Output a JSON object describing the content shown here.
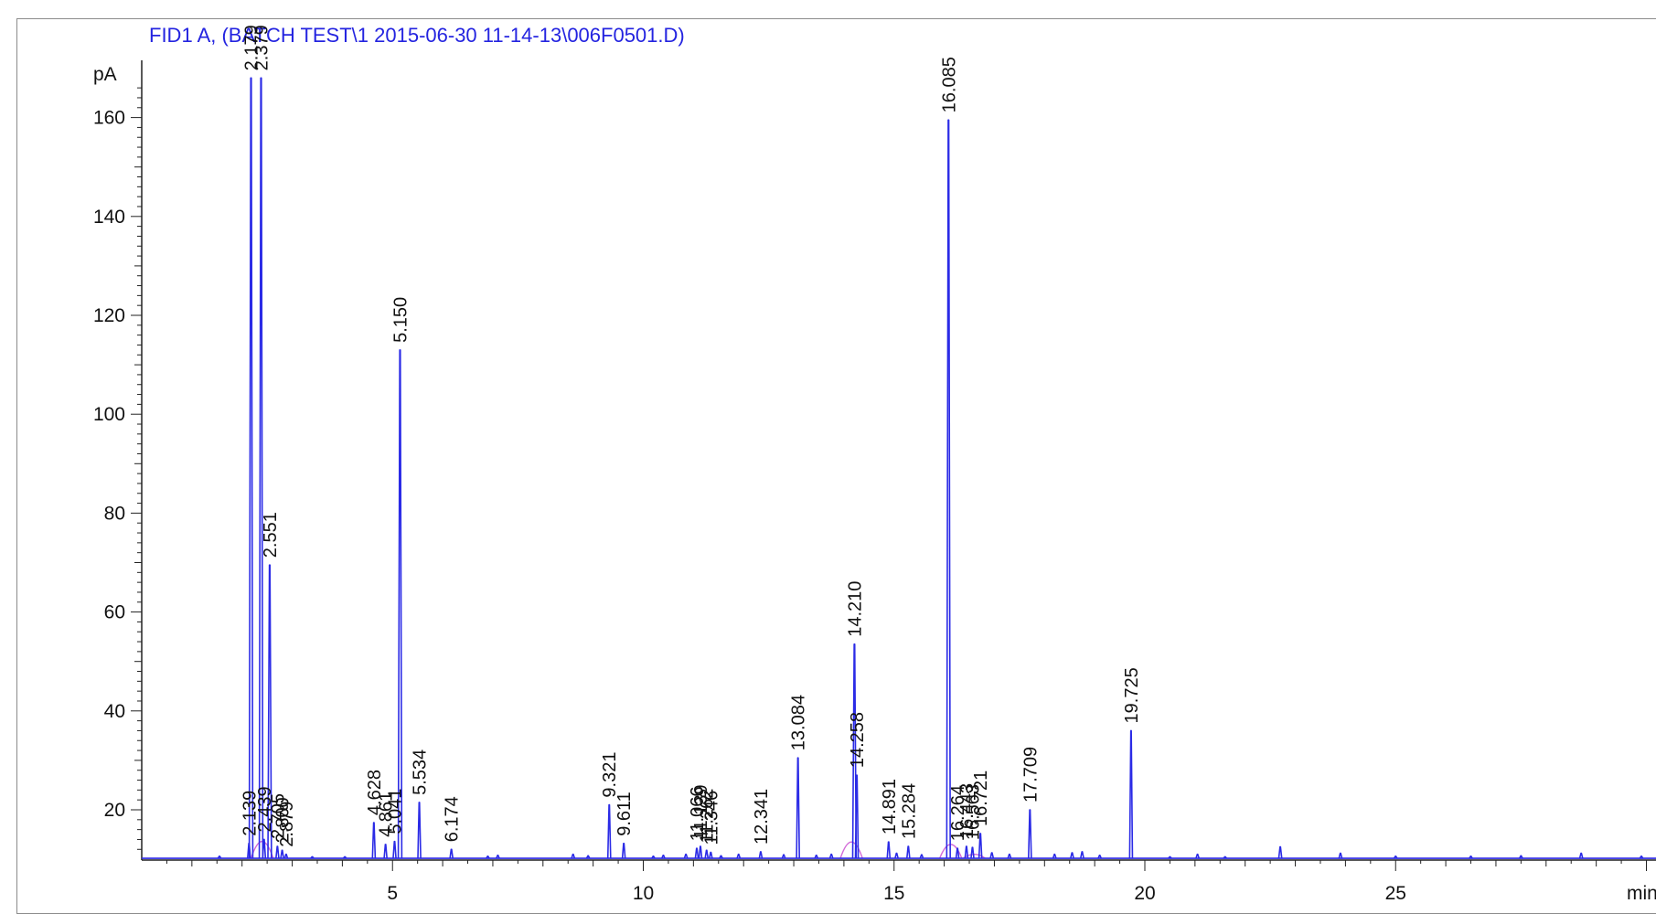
{
  "chart_data": {
    "type": "line",
    "title": "FID1 A,  (BATCH TEST\\1 2015-06-30 11-14-13\\006F0501.D)",
    "ylabel": "pA",
    "xlabel": "min",
    "xlim": [
      0,
      30.5
    ],
    "ylim": [
      9.5,
      168
    ],
    "x_ticks": [
      5,
      10,
      15,
      20,
      25
    ],
    "y_ticks": [
      20,
      40,
      60,
      80,
      100,
      120,
      140,
      160
    ],
    "baseline": 10.2,
    "grid": false,
    "series": [
      {
        "color": "#2b2be6"
      },
      {
        "color": "#d36ad8"
      }
    ],
    "peaks": [
      {
        "label": "2.139",
        "x": 2.139,
        "y": 13.2
      },
      {
        "label": "2.179",
        "x": 2.179,
        "y": 168
      },
      {
        "label": "2.379",
        "x": 2.379,
        "y": 168
      },
      {
        "label": "2.439",
        "x": 2.439,
        "y": 14.0
      },
      {
        "label": "2.551",
        "x": 2.551,
        "y": 69.5
      },
      {
        "label": "2.705",
        "x": 2.705,
        "y": 12.6
      },
      {
        "label": "2.800",
        "x": 2.8,
        "y": 11.8
      },
      {
        "label": "2.879",
        "x": 2.879,
        "y": 11.0
      },
      {
        "label": "4.628",
        "x": 4.628,
        "y": 17.4
      },
      {
        "label": "4.861",
        "x": 4.861,
        "y": 13.0
      },
      {
        "label": "5.041",
        "x": 5.041,
        "y": 13.6
      },
      {
        "label": "5.150",
        "x": 5.15,
        "y": 113.0
      },
      {
        "label": "5.534",
        "x": 5.534,
        "y": 21.5
      },
      {
        "label": "6.174",
        "x": 6.174,
        "y": 12.0
      },
      {
        "label": "9.321",
        "x": 9.321,
        "y": 21.0
      },
      {
        "label": "9.611",
        "x": 9.611,
        "y": 13.2
      },
      {
        "label": "11.066",
        "x": 11.066,
        "y": 12.2
      },
      {
        "label": "11.139",
        "x": 11.139,
        "y": 12.6
      },
      {
        "label": "11.262",
        "x": 11.262,
        "y": 11.8
      },
      {
        "label": "11.346",
        "x": 11.346,
        "y": 11.4
      },
      {
        "label": "12.341",
        "x": 12.341,
        "y": 11.5
      },
      {
        "label": "13.084",
        "x": 13.084,
        "y": 30.5
      },
      {
        "label": "14.210",
        "x": 14.21,
        "y": 53.5
      },
      {
        "label": "14.258",
        "x": 14.258,
        "y": 27.0
      },
      {
        "label": "14.891",
        "x": 14.891,
        "y": 13.5
      },
      {
        "label": "15.284",
        "x": 15.284,
        "y": 12.6
      },
      {
        "label": "16.085",
        "x": 16.085,
        "y": 159.5
      },
      {
        "label": "16.264",
        "x": 16.264,
        "y": 12.2
      },
      {
        "label": "16.443",
        "x": 16.443,
        "y": 12.6
      },
      {
        "label": "16.563",
        "x": 16.563,
        "y": 12.4
      },
      {
        "label": "16.721",
        "x": 16.721,
        "y": 15.2
      },
      {
        "label": "17.709",
        "x": 17.709,
        "y": 20.0
      },
      {
        "label": "19.725",
        "x": 19.725,
        "y": 36.0
      }
    ],
    "minor_peaks": [
      {
        "x": 1.55,
        "y": 10.6
      },
      {
        "x": 3.4,
        "y": 10.5
      },
      {
        "x": 4.05,
        "y": 10.5
      },
      {
        "x": 6.9,
        "y": 10.6
      },
      {
        "x": 7.1,
        "y": 10.8
      },
      {
        "x": 8.6,
        "y": 11.0
      },
      {
        "x": 8.9,
        "y": 10.7
      },
      {
        "x": 10.2,
        "y": 10.6
      },
      {
        "x": 10.4,
        "y": 10.8
      },
      {
        "x": 10.85,
        "y": 11.0
      },
      {
        "x": 11.55,
        "y": 10.7
      },
      {
        "x": 11.9,
        "y": 11.0
      },
      {
        "x": 12.8,
        "y": 10.9
      },
      {
        "x": 13.45,
        "y": 10.8
      },
      {
        "x": 13.75,
        "y": 11.0
      },
      {
        "x": 15.05,
        "y": 11.2
      },
      {
        "x": 15.55,
        "y": 10.9
      },
      {
        "x": 16.95,
        "y": 11.3
      },
      {
        "x": 17.3,
        "y": 11.0
      },
      {
        "x": 18.2,
        "y": 11.0
      },
      {
        "x": 18.55,
        "y": 11.3
      },
      {
        "x": 18.75,
        "y": 11.5
      },
      {
        "x": 19.1,
        "y": 10.8
      },
      {
        "x": 20.5,
        "y": 10.5
      },
      {
        "x": 21.05,
        "y": 11.0
      },
      {
        "x": 21.6,
        "y": 10.5
      },
      {
        "x": 22.7,
        "y": 12.5
      },
      {
        "x": 23.9,
        "y": 11.2
      },
      {
        "x": 25.0,
        "y": 10.6
      },
      {
        "x": 26.5,
        "y": 10.6
      },
      {
        "x": 27.5,
        "y": 10.7
      },
      {
        "x": 28.7,
        "y": 11.2
      },
      {
        "x": 29.9,
        "y": 10.6
      }
    ],
    "magenta_humps": [
      {
        "x": 2.4,
        "y": 13.6
      },
      {
        "x": 14.15,
        "y": 13.5
      },
      {
        "x": 16.13,
        "y": 13.0
      },
      {
        "x": 16.6,
        "y": 11.0
      }
    ]
  }
}
